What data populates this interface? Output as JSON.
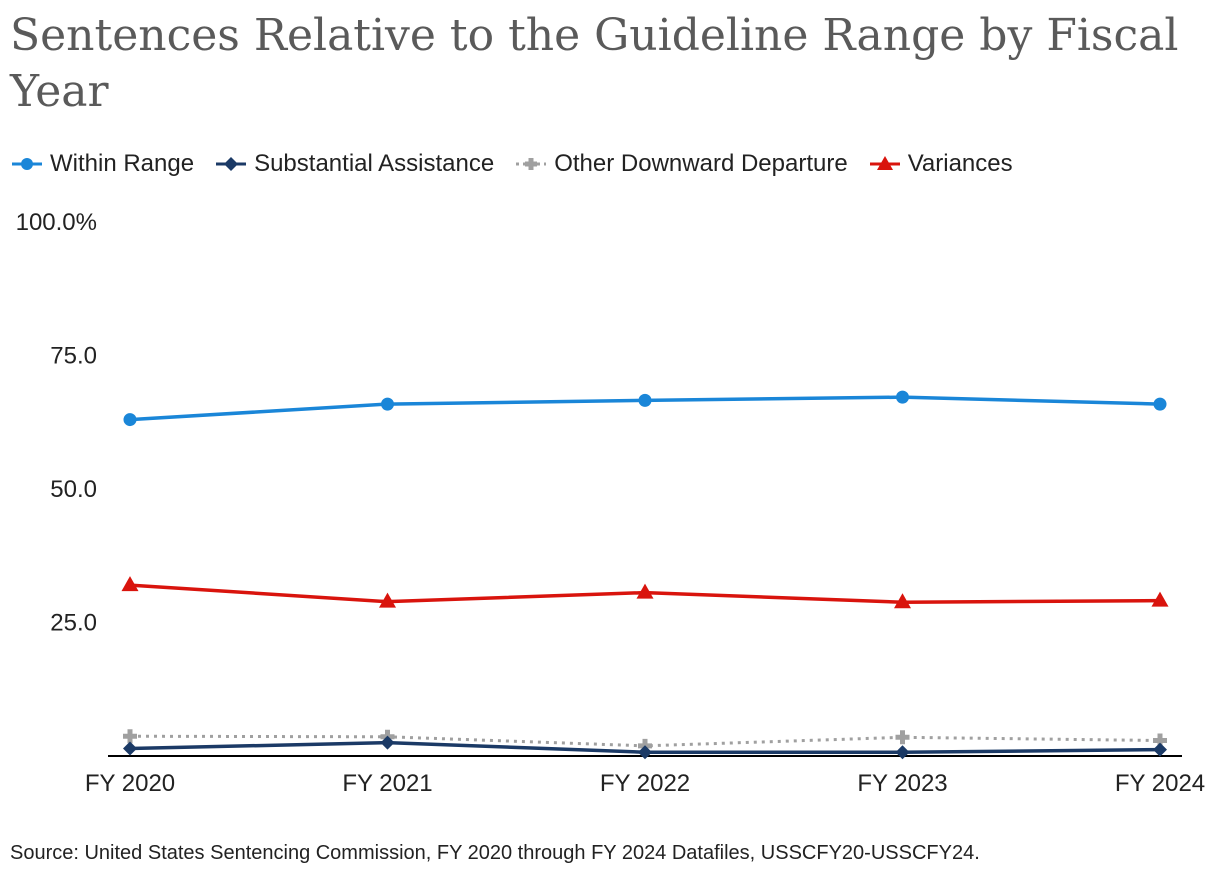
{
  "chart_data": {
    "type": "line",
    "title": "Sentences Relative to the Guideline Range by Fiscal Year",
    "categories": [
      "FY 2020",
      "FY 2021",
      "FY 2022",
      "FY 2023",
      "FY 2024"
    ],
    "ylim": [
      0,
      100
    ],
    "yticks": [
      {
        "value": 100,
        "label": "100.0%"
      },
      {
        "value": 75,
        "label": "75.0"
      },
      {
        "value": 50,
        "label": "50.0"
      },
      {
        "value": 25,
        "label": "25.0"
      }
    ],
    "series": [
      {
        "name": "Within Range",
        "color": "#1a86d8",
        "marker": "circle",
        "dash": "solid",
        "values": [
          63.0,
          65.9,
          66.6,
          67.2,
          65.9
        ]
      },
      {
        "name": "Substantial Assistance",
        "color": "#1b3a66",
        "marker": "diamond",
        "dash": "solid",
        "values": [
          1.4,
          2.5,
          0.7,
          0.7,
          1.2
        ]
      },
      {
        "name": "Other Downward Departure",
        "color": "#a0a0a0",
        "marker": "plus",
        "dash": "dotted",
        "values": [
          3.7,
          3.6,
          1.9,
          3.5,
          2.9
        ]
      },
      {
        "name": "Variances",
        "color": "#d9140d",
        "marker": "triangle",
        "dash": "solid",
        "values": [
          32.0,
          28.9,
          30.6,
          28.8,
          29.1
        ]
      }
    ],
    "xlabel": "",
    "ylabel": "",
    "legend_position": "top-left",
    "grid": false
  },
  "source": "Source: United States Sentencing Commission, FY 2020 through FY 2024 Datafiles, USSCFY20-USSCFY24."
}
